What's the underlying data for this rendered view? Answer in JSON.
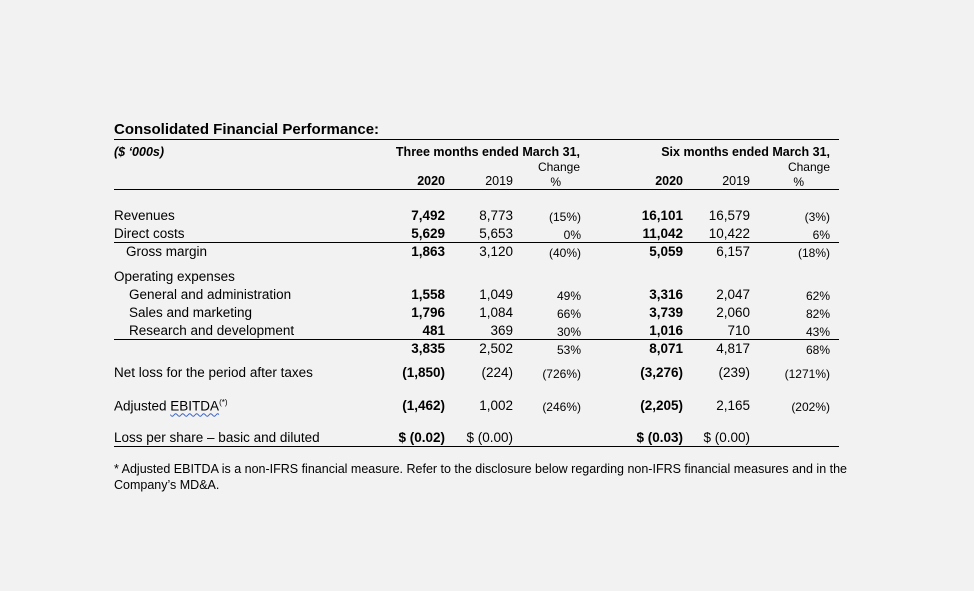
{
  "title": "Consolidated Financial Performance:",
  "units": "($ ‘000s)",
  "periods": {
    "three": "Three months ended March 31,",
    "six": "Six months ended March 31,"
  },
  "headers": {
    "change": "Change",
    "pct": "%",
    "y2020": "2020",
    "y2019": "2019"
  },
  "rows": {
    "revenues": {
      "label": "Revenues",
      "q20": "7,492",
      "q19": "8,773",
      "qc": "(15%)",
      "s20": "16,101",
      "s19": "16,579",
      "sc": "(3%)"
    },
    "direct": {
      "label": "Direct costs",
      "q20": "5,629",
      "q19": "5,653",
      "qc": "0%",
      "s20": "11,042",
      "s19": "10,422",
      "sc": "6%"
    },
    "gross": {
      "label": "Gross margin",
      "q20": "1,863",
      "q19": "3,120",
      "qc": "(40%)",
      "s20": "5,059",
      "s19": "6,157",
      "sc": "(18%)"
    },
    "opex": {
      "label": "Operating expenses"
    },
    "ga": {
      "label": "General and administration",
      "q20": "1,558",
      "q19": "1,049",
      "qc": "49%",
      "s20": "3,316",
      "s19": "2,047",
      "sc": "62%"
    },
    "sm": {
      "label": "Sales and marketing",
      "q20": "1,796",
      "q19": "1,084",
      "qc": "66%",
      "s20": "3,739",
      "s19": "2,060",
      "sc": "82%"
    },
    "rd": {
      "label": "Research and development",
      "q20": "481",
      "q19": "369",
      "qc": "30%",
      "s20": "1,016",
      "s19": "710",
      "sc": "43%"
    },
    "opex_total": {
      "q20": "3,835",
      "q19": "2,502",
      "qc": "53%",
      "s20": "8,071",
      "s19": "4,817",
      "sc": "68%"
    },
    "netloss": {
      "label": "Net loss for the period after taxes",
      "q20": "(1,850)",
      "q19": "(224)",
      "qc": "(726%)",
      "s20": "(3,276)",
      "s19": "(239)",
      "sc": "(1271%)"
    },
    "ebitda": {
      "label_main": "Adjusted ",
      "label_squig": "EBITDA",
      "label_sup": "(*)",
      "q20": "(1,462)",
      "q19": "1,002",
      "qc": "(246%)",
      "s20": "(2,205)",
      "s19": "2,165",
      "sc": "(202%)"
    },
    "lps": {
      "label": "Loss per share – basic and diluted",
      "q20": "$ (0.02)",
      "q19": "$ (0.00)",
      "s20": "$ (0.03)",
      "s19": "$ (0.00)"
    }
  },
  "footnote": "* Adjusted EBITDA is a non-IFRS financial measure. Refer to the disclosure below regarding non-IFRS financial measures and in the Company’s MD&A."
}
